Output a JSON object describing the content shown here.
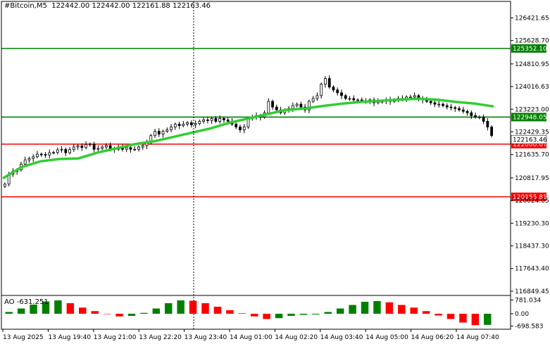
{
  "header": {
    "symbol": "#Bitcoin,M5",
    "ohlc": "122442.00 122442.00 122161.88 122163.46"
  },
  "ao": {
    "label": "AO -631.251",
    "max_label": "781.034",
    "zero_label": "0.00",
    "min_label": "-698.583"
  },
  "chart_data": {
    "type": "candlestick",
    "title": "#Bitcoin,M5",
    "ylim": [
      116700,
      127000
    ],
    "y_tick_labels": [
      "126421.65",
      "125628.70",
      "124810.95",
      "124016.63",
      "123223.00",
      "122429.35",
      "121635.70",
      "120817.95",
      "120024.05",
      "119230.30",
      "118437.30",
      "117643.40",
      "116849.45"
    ],
    "y_tick_values": [
      126421.65,
      125628.7,
      124810.95,
      124016.63,
      123223.0,
      122429.35,
      121635.7,
      120817.95,
      120024.05,
      119230.3,
      118437.3,
      117643.4,
      116849.45
    ],
    "x_tick_labels": [
      "13 Aug 2025",
      "13 Aug 19:40",
      "13 Aug 21:00",
      "13 Aug 22:20",
      "13 Aug 23:40",
      "14 Aug 01:00",
      "14 Aug 02:20",
      "14 Aug 03:40",
      "14 Aug 05:00",
      "14 Aug 06:20",
      "14 Aug 07:40"
    ],
    "price_levels": [
      {
        "value": 125352.1,
        "label": "125352.10",
        "color": "#008000"
      },
      {
        "value": 122948.05,
        "label": "122948.05",
        "color": "#008000"
      },
      {
        "value": 122000.67,
        "label": "122000.67",
        "color": "#ff0000"
      },
      {
        "value": 120155.81,
        "label": "120155.81",
        "color": "#ff0000"
      }
    ],
    "current_price": {
      "value": 122163.46,
      "label": "122163.46"
    },
    "close_series": [
      120600,
      120950,
      121050,
      121100,
      121300,
      121450,
      121500,
      121560,
      121650,
      121640,
      121620,
      121700,
      121710,
      121800,
      121820,
      121700,
      121810,
      121900,
      121940,
      121880,
      121990,
      122000,
      121820,
      121850,
      121900,
      121950,
      121850,
      121820,
      121900,
      121820,
      121880,
      121820,
      121820,
      121900,
      121950,
      122050,
      122300,
      122450,
      122350,
      122450,
      122500,
      122600,
      122700,
      122650,
      122700,
      122750,
      122680,
      122720,
      122800,
      122850,
      122830,
      122900,
      122800,
      122900,
      122850,
      122800,
      122700,
      122600,
      122500,
      122600,
      122900,
      122950,
      123000,
      122950,
      123100,
      123500,
      123300,
      123200,
      123100,
      123200,
      123250,
      123350,
      123400,
      123300,
      123200,
      123500,
      123600,
      123700,
      124100,
      124300,
      124000,
      123900,
      123800,
      123700,
      123600,
      123600,
      123550,
      123550,
      123500,
      123500,
      123550,
      123450,
      123500,
      123500,
      123550,
      123500,
      123550,
      123600,
      123600,
      123650,
      123650,
      123700,
      123600,
      123550,
      123500,
      123450,
      123400,
      123400,
      123350,
      123300,
      123280,
      123250,
      123200,
      123150,
      123100,
      123000,
      122950,
      122950,
      122800,
      122600,
      122300
    ],
    "ma_series": [
      120800,
      121200,
      121400,
      121480,
      121500,
      121700,
      121850,
      122000,
      122100,
      122250,
      122400,
      122550,
      122750,
      122900,
      123050,
      123200,
      123250,
      123340,
      123420,
      123480,
      123520,
      123560,
      123590,
      123560,
      123480,
      123420,
      123320
    ],
    "ao_series": [
      100,
      300,
      520,
      700,
      760,
      600,
      350,
      150,
      -20,
      -150,
      -120,
      50,
      300,
      600,
      760,
      740,
      600,
      400,
      200,
      30,
      -150,
      -300,
      -250,
      -120,
      -60,
      -40,
      100,
      300,
      500,
      680,
      720,
      650,
      500,
      350,
      150,
      -100,
      -300,
      -500,
      -650,
      -631
    ],
    "colors": {
      "bull": "#008000",
      "bear": "#ff0000",
      "candle": "#000000",
      "ma": "#32cd32",
      "grid": "#000000"
    }
  }
}
